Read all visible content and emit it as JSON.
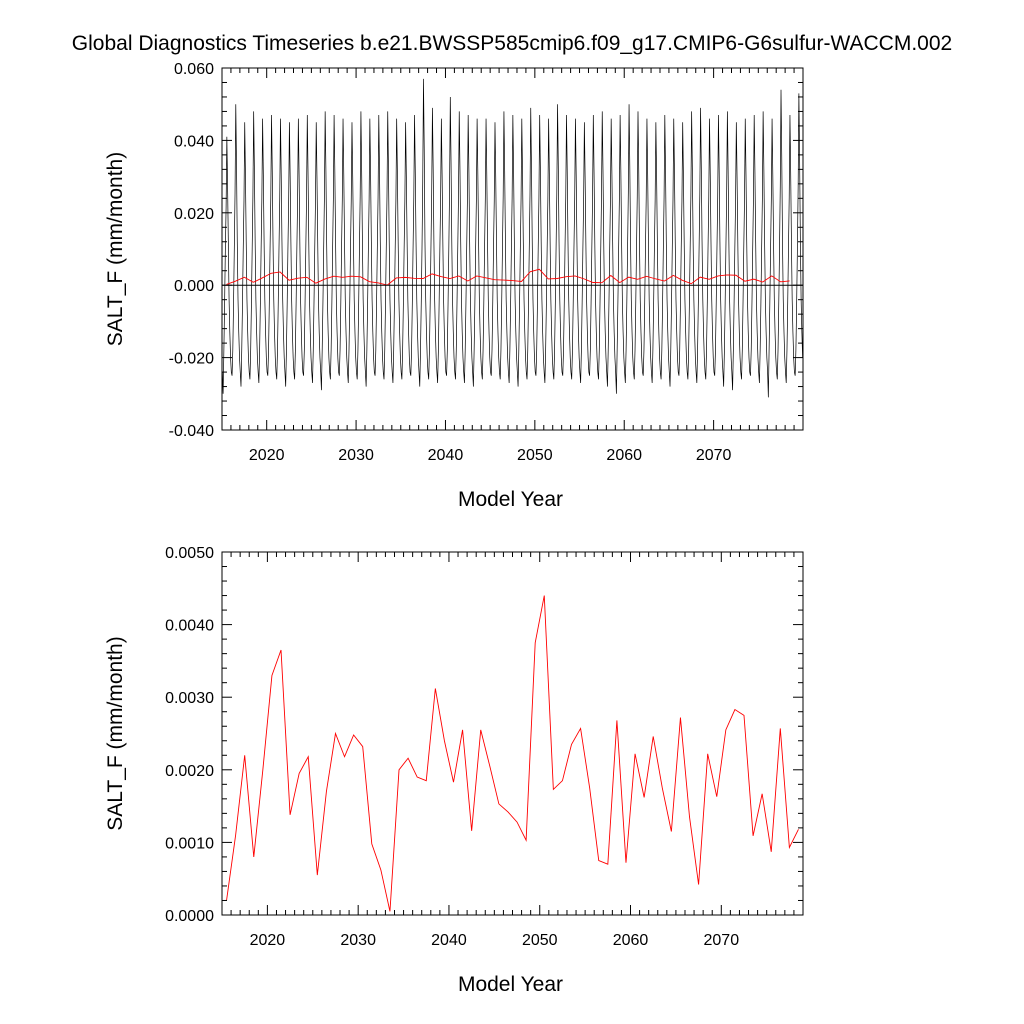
{
  "title": "Global Diagnostics Timeseries b.e21.BWSSP585cmip6.f09_g17.CMIP6-G6sulfur-WACCM.002",
  "colors": {
    "monthly": "#000000",
    "annual": "#ff0000",
    "axes": "#000000"
  },
  "chart_data": [
    {
      "type": "line",
      "xlabel": "Model Year",
      "ylabel": "SALT_F (mm/month)",
      "xlim": [
        2015,
        2080
      ],
      "ylim": [
        -0.04,
        0.06
      ],
      "x_ticks": [
        2020,
        2030,
        2040,
        2050,
        2060,
        2070
      ],
      "x_tick_labels": [
        "2020",
        "2030",
        "2040",
        "2050",
        "2060",
        "2070"
      ],
      "y_ticks": [
        -0.04,
        -0.02,
        0.0,
        0.02,
        0.04,
        0.06
      ],
      "y_tick_labels": [
        "-0.040",
        "-0.020",
        "0.000",
        "0.020",
        "0.040",
        "0.060"
      ],
      "zero_line": true,
      "grid": false,
      "series": [
        {
          "color": "#000000",
          "x_start": 2015.042,
          "x_step": 0.08333,
          "annual_cycle": [
            -0.024,
            -0.026,
            -0.018,
            -0.005,
            0.01,
            0.025,
            0.046,
            0.032,
            0.012,
            -0.004,
            -0.013,
            -0.02
          ],
          "summer_peaks": [
            0.041,
            0.05,
            0.045,
            0.048,
            0.046,
            0.047,
            0.046,
            0.045,
            0.046,
            0.047,
            0.045,
            0.048,
            0.047,
            0.046,
            0.045,
            0.048,
            0.046,
            0.047,
            0.048,
            0.046,
            0.045,
            0.047,
            0.057,
            0.049,
            0.046,
            0.052,
            0.048,
            0.047,
            0.046,
            0.046,
            0.045,
            0.048,
            0.047,
            0.046,
            0.049,
            0.047,
            0.046,
            0.05,
            0.047,
            0.046,
            0.045,
            0.047,
            0.048,
            0.046,
            0.047,
            0.05,
            0.048,
            0.046,
            0.045,
            0.047,
            0.046,
            0.045,
            0.048,
            0.049,
            0.046,
            0.047,
            0.048,
            0.045,
            0.046,
            0.047,
            0.048,
            0.046,
            0.054,
            0.047,
            0.053
          ],
          "winter_troughs": [
            -0.03,
            -0.025,
            -0.028,
            -0.026,
            -0.027,
            -0.025,
            -0.026,
            -0.028,
            -0.026,
            -0.025,
            -0.027,
            -0.029,
            -0.026,
            -0.025,
            -0.027,
            -0.026,
            -0.028,
            -0.025,
            -0.026,
            -0.027,
            -0.026,
            -0.025,
            -0.028,
            -0.026,
            -0.027,
            -0.025,
            -0.026,
            -0.027,
            -0.028,
            -0.026,
            -0.025,
            -0.026,
            -0.027,
            -0.028,
            -0.026,
            -0.025,
            -0.027,
            -0.026,
            -0.025,
            -0.026,
            -0.027,
            -0.025,
            -0.026,
            -0.028,
            -0.03,
            -0.027,
            -0.026,
            -0.025,
            -0.027,
            -0.026,
            -0.028,
            -0.025,
            -0.026,
            -0.027,
            -0.026,
            -0.025,
            -0.028,
            -0.029,
            -0.026,
            -0.025,
            -0.027,
            -0.031,
            -0.026,
            -0.027,
            -0.025
          ]
        },
        {
          "color": "#ff0000",
          "x": [
            2015.5,
            2016.5,
            2017.5,
            2018.5,
            2019.5,
            2020.5,
            2021.5,
            2022.5,
            2023.5,
            2024.5,
            2025.5,
            2026.5,
            2027.5,
            2028.5,
            2029.5,
            2030.5,
            2031.5,
            2032.5,
            2033.5,
            2034.5,
            2035.5,
            2036.5,
            2037.5,
            2038.5,
            2039.5,
            2040.5,
            2041.5,
            2042.5,
            2043.5,
            2044.5,
            2045.5,
            2046.5,
            2047.5,
            2048.5,
            2049.5,
            2050.5,
            2051.5,
            2052.5,
            2053.5,
            2054.5,
            2055.5,
            2056.5,
            2057.5,
            2058.5,
            2059.5,
            2060.5,
            2061.5,
            2062.5,
            2063.5,
            2064.5,
            2065.5,
            2066.5,
            2067.5,
            2068.5,
            2069.5,
            2070.5,
            2071.5,
            2072.5,
            2073.5,
            2074.5,
            2075.5,
            2076.5,
            2077.5,
            2078.5
          ],
          "y": [
            0.0002,
            0.0011,
            0.0022,
            0.0008,
            0.002,
            0.0033,
            0.00365,
            0.00138,
            0.00195,
            0.00218,
            0.00055,
            0.0017,
            0.0025,
            0.00218,
            0.00248,
            0.00232,
            0.00098,
            0.00062,
            5e-05,
            0.002,
            0.00216,
            0.0019,
            0.00185,
            0.00312,
            0.0024,
            0.00183,
            0.00255,
            0.00116,
            0.00255,
            0.00205,
            0.00153,
            0.00142,
            0.00128,
            0.00103,
            0.00375,
            0.0044,
            0.00173,
            0.00185,
            0.00235,
            0.00257,
            0.00175,
            0.00075,
            0.0007,
            0.00268,
            0.00072,
            0.00222,
            0.00162,
            0.00246,
            0.00175,
            0.00115,
            0.00272,
            0.00135,
            0.00042,
            0.00222,
            0.00163,
            0.00255,
            0.00283,
            0.00275,
            0.00109,
            0.00167,
            0.00087,
            0.00257,
            0.00093,
            0.00118
          ]
        }
      ]
    },
    {
      "type": "line",
      "xlabel": "Model Year",
      "ylabel": "SALT_F (mm/month)",
      "xlim": [
        2015,
        2079
      ],
      "ylim": [
        0.0,
        0.005
      ],
      "x_ticks": [
        2020,
        2030,
        2040,
        2050,
        2060,
        2070
      ],
      "x_tick_labels": [
        "2020",
        "2030",
        "2040",
        "2050",
        "2060",
        "2070"
      ],
      "y_ticks": [
        0.0,
        0.001,
        0.002,
        0.003,
        0.004,
        0.005
      ],
      "y_tick_labels": [
        "0.0000",
        "0.0010",
        "0.0020",
        "0.0030",
        "0.0040",
        "0.0050"
      ],
      "grid": false,
      "series": [
        {
          "color": "#ff0000",
          "x": [
            2015.5,
            2016.5,
            2017.5,
            2018.5,
            2019.5,
            2020.5,
            2021.5,
            2022.5,
            2023.5,
            2024.5,
            2025.5,
            2026.5,
            2027.5,
            2028.5,
            2029.5,
            2030.5,
            2031.5,
            2032.5,
            2033.5,
            2034.5,
            2035.5,
            2036.5,
            2037.5,
            2038.5,
            2039.5,
            2040.5,
            2041.5,
            2042.5,
            2043.5,
            2044.5,
            2045.5,
            2046.5,
            2047.5,
            2048.5,
            2049.5,
            2050.5,
            2051.5,
            2052.5,
            2053.5,
            2054.5,
            2055.5,
            2056.5,
            2057.5,
            2058.5,
            2059.5,
            2060.5,
            2061.5,
            2062.5,
            2063.5,
            2064.5,
            2065.5,
            2066.5,
            2067.5,
            2068.5,
            2069.5,
            2070.5,
            2071.5,
            2072.5,
            2073.5,
            2074.5,
            2075.5,
            2076.5,
            2077.5,
            2078.5
          ],
          "y": [
            0.0002,
            0.0011,
            0.0022,
            0.0008,
            0.002,
            0.0033,
            0.00365,
            0.00138,
            0.00195,
            0.00218,
            0.00055,
            0.0017,
            0.0025,
            0.00218,
            0.00248,
            0.00232,
            0.00098,
            0.00062,
            5e-05,
            0.002,
            0.00216,
            0.0019,
            0.00185,
            0.00312,
            0.0024,
            0.00183,
            0.00255,
            0.00116,
            0.00255,
            0.00205,
            0.00153,
            0.00142,
            0.00128,
            0.00103,
            0.00375,
            0.0044,
            0.00173,
            0.00185,
            0.00235,
            0.00257,
            0.00175,
            0.00075,
            0.0007,
            0.00268,
            0.00072,
            0.00222,
            0.00162,
            0.00246,
            0.00175,
            0.00115,
            0.00272,
            0.00135,
            0.00042,
            0.00222,
            0.00163,
            0.00255,
            0.00283,
            0.00275,
            0.00109,
            0.00167,
            0.00087,
            0.00257,
            0.00093,
            0.00118
          ]
        }
      ]
    }
  ]
}
